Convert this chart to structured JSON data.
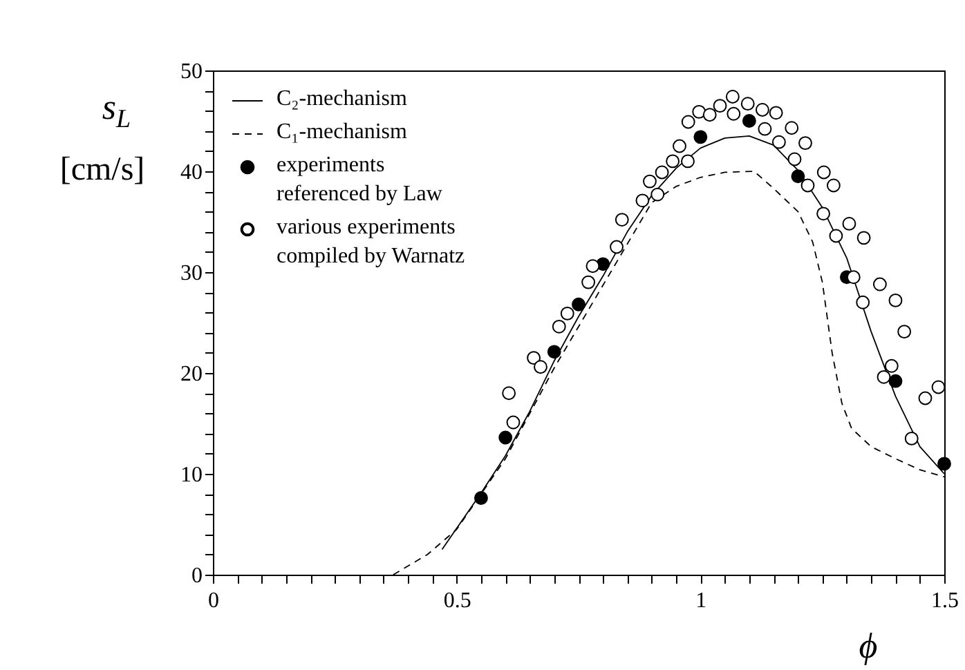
{
  "chart_data": {
    "type": "line",
    "xlabel": "ϕ",
    "ylabel": "s$_{L}$ [cm/s]",
    "xlim": [
      0,
      1.5
    ],
    "ylim": [
      0,
      50
    ],
    "xticks": [
      0,
      {
        "value": 0.05,
        "label": null
      },
      {
        "value": 0.1,
        "label": null
      },
      {
        "value": 0.15,
        "label": null
      },
      {
        "value": 0.2,
        "label": null
      },
      {
        "value": 0.25,
        "label": null
      },
      {
        "value": 0.3,
        "label": null
      },
      {
        "value": 0.35,
        "label": null
      },
      {
        "value": 0.4,
        "label": null
      },
      {
        "value": 0.45,
        "label": null
      },
      0.5,
      {
        "value": 0.55,
        "label": null
      },
      {
        "value": 0.6,
        "label": null
      },
      {
        "value": 0.65,
        "label": null
      },
      {
        "value": 0.7,
        "label": null
      },
      {
        "value": 0.75,
        "label": null
      },
      {
        "value": 0.8,
        "label": null
      },
      {
        "value": 0.85,
        "label": null
      },
      {
        "value": 0.9,
        "label": null
      },
      {
        "value": 0.95,
        "label": null
      },
      1,
      {
        "value": 1.05,
        "label": null
      },
      {
        "value": 1.1,
        "label": null
      },
      {
        "value": 1.15,
        "label": null
      },
      {
        "value": 1.2,
        "label": null
      },
      {
        "value": 1.25,
        "label": null
      },
      {
        "value": 1.3,
        "label": null
      },
      {
        "value": 1.35,
        "label": null
      },
      {
        "value": 1.4,
        "label": null
      },
      {
        "value": 1.45,
        "label": null
      },
      1.5
    ],
    "yticks": [
      0,
      {
        "value": 2,
        "label": null
      },
      {
        "value": 4,
        "label": null
      },
      {
        "value": 6,
        "label": null
      },
      {
        "value": 8,
        "label": null
      },
      10,
      {
        "value": 12,
        "label": null
      },
      {
        "value": 14,
        "label": null
      },
      {
        "value": 16,
        "label": null
      },
      {
        "value": 18,
        "label": null
      },
      20,
      {
        "value": 22,
        "label": null
      },
      {
        "value": 24,
        "label": null
      },
      {
        "value": 26,
        "label": null
      },
      {
        "value": 28,
        "label": null
      },
      30,
      {
        "value": 32,
        "label": null
      },
      {
        "value": 34,
        "label": null
      },
      {
        "value": 36,
        "label": null
      },
      {
        "value": 38,
        "label": null
      },
      40,
      {
        "value": 42,
        "label": null
      },
      {
        "value": 44,
        "label": null
      },
      {
        "value": 46,
        "label": null
      },
      {
        "value": 48,
        "label": null
      },
      50
    ],
    "grid": false,
    "legend": "top left",
    "series": [
      {
        "name": "C₂-mechanism",
        "line_style": "solid",
        "color": "#000000",
        "x": [
          0.47,
          0.5,
          0.55,
          0.6,
          0.65,
          0.7,
          0.75,
          0.8,
          0.85,
          0.9,
          0.95,
          1.0,
          1.05,
          1.1,
          1.15,
          1.2,
          1.25,
          1.3,
          1.35,
          1.4,
          1.45,
          1.5
        ],
        "values": [
          2.5,
          4.6,
          8.1,
          11.8,
          16.2,
          21.2,
          25.6,
          29.6,
          34.0,
          37.6,
          40.3,
          42.3,
          43.3,
          43.5,
          42.6,
          40.1,
          36.4,
          31.4,
          24.1,
          17.7,
          12.7,
          10.0
        ]
      },
      {
        "name": "C₁-mechanism",
        "line_style": "dashed",
        "color": "#000000",
        "x": [
          0.37,
          0.44,
          0.5,
          0.6,
          0.7,
          0.8,
          0.9,
          0.95,
          1.0,
          1.05,
          1.11,
          1.15,
          1.2,
          1.23,
          1.25,
          1.27,
          1.29,
          1.31,
          1.35,
          1.4,
          1.45,
          1.5
        ],
        "values": [
          0.0,
          2.0,
          4.5,
          11.5,
          20.5,
          28.7,
          36.9,
          38.5,
          39.4,
          39.9,
          40.0,
          38.3,
          36.0,
          33.0,
          29.0,
          22.0,
          17.0,
          14.5,
          12.7,
          11.5,
          10.4,
          9.7
        ]
      },
      {
        "name": "experiments referenced by Law",
        "type": "scatter",
        "marker": "circle",
        "color": "#000000",
        "x": [
          0.55,
          0.6,
          0.7,
          0.75,
          0.8,
          1.0,
          1.1,
          1.2,
          1.3,
          1.4,
          1.5
        ],
        "values": [
          7.6,
          13.6,
          22.1,
          26.8,
          30.8,
          43.4,
          45.0,
          39.5,
          29.5,
          19.2,
          11.0
        ]
      },
      {
        "name": "various experiments compiled by Warnatz",
        "type": "scatter",
        "marker": "circle",
        "color": "#ffffff",
        "x": [
          0.607,
          0.616,
          0.658,
          0.672,
          0.71,
          0.727,
          0.77,
          0.779,
          0.828,
          0.839,
          0.881,
          0.912,
          0.896,
          0.921,
          0.943,
          0.957,
          0.974,
          0.975,
          0.997,
          1.019,
          1.04,
          1.066,
          1.068,
          1.097,
          1.127,
          1.155,
          1.132,
          1.161,
          1.187,
          1.215,
          1.193,
          1.22,
          1.253,
          1.273,
          1.252,
          1.278,
          1.305,
          1.335,
          1.314,
          1.333,
          1.368,
          1.4,
          1.418,
          1.392,
          1.376,
          1.461,
          1.488,
          1.433
        ],
        "values": [
          18.0,
          15.1,
          21.5,
          20.6,
          24.6,
          25.9,
          29.0,
          30.6,
          32.5,
          35.2,
          37.1,
          37.7,
          39.0,
          39.9,
          41.0,
          42.5,
          41.0,
          44.9,
          45.9,
          45.6,
          46.5,
          47.4,
          45.7,
          46.7,
          46.1,
          45.8,
          44.2,
          42.9,
          44.3,
          42.8,
          41.2,
          38.6,
          39.9,
          38.6,
          35.8,
          33.6,
          34.8,
          33.4,
          29.5,
          27.0,
          28.8,
          27.2,
          24.1,
          20.7,
          19.6,
          17.5,
          18.6,
          13.5
        ]
      }
    ]
  }
}
